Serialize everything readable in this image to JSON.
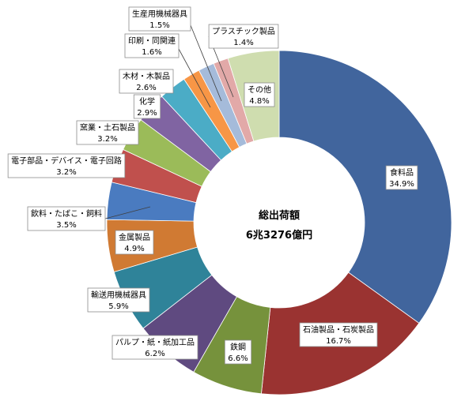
{
  "chart_data": {
    "type": "pie",
    "donut": true,
    "legend": "none",
    "center_label": {
      "title": "総出荷額",
      "value": "6兆3276億円"
    },
    "slices": [
      {
        "label": "食料品",
        "value": 34.9,
        "value_label": "34.9%",
        "color": "#41659D"
      },
      {
        "label": "石油製品・石炭製品",
        "value": 16.7,
        "value_label": "16.7%",
        "color": "#9A3331"
      },
      {
        "label": "鉄鋼",
        "value": 6.6,
        "value_label": "6.6%",
        "color": "#76923C"
      },
      {
        "label": "パルプ・紙・紙加工品",
        "value": 6.2,
        "value_label": "6.2%",
        "color": "#5F4A80"
      },
      {
        "label": "輸送用機械器具",
        "value": 5.9,
        "value_label": "5.9%",
        "color": "#2F8399"
      },
      {
        "label": "金属製品",
        "value": 4.9,
        "value_label": "4.9%",
        "color": "#D07A33"
      },
      {
        "label": "飲料・たばこ・飼料",
        "value": 3.5,
        "value_label": "3.5%",
        "color": "#4A7BC0"
      },
      {
        "label": "電子部品・デバイス・電子回路",
        "value": 3.2,
        "value_label": "3.2%",
        "color": "#C0504D"
      },
      {
        "label": "窯業・土石製品",
        "value": 3.2,
        "value_label": "3.2%",
        "color": "#9BBB59"
      },
      {
        "label": "化学",
        "value": 2.9,
        "value_label": "2.9%",
        "color": "#8064A2"
      },
      {
        "label": "木材・木製品",
        "value": 2.6,
        "value_label": "2.6%",
        "color": "#4BACC6"
      },
      {
        "label": "印刷・同関連",
        "value": 1.6,
        "value_label": "1.6%",
        "color": "#F79646"
      },
      {
        "label": "生産用機械器具",
        "value": 1.5,
        "value_label": "1.5%",
        "color": "#A5BBDA"
      },
      {
        "label": "プラスチック製品",
        "value": 1.4,
        "value_label": "1.4%",
        "color": "#E2A9A8"
      },
      {
        "label": "その他",
        "value": 4.8,
        "value_label": "4.8%",
        "color": "#CFDDAF"
      }
    ]
  }
}
